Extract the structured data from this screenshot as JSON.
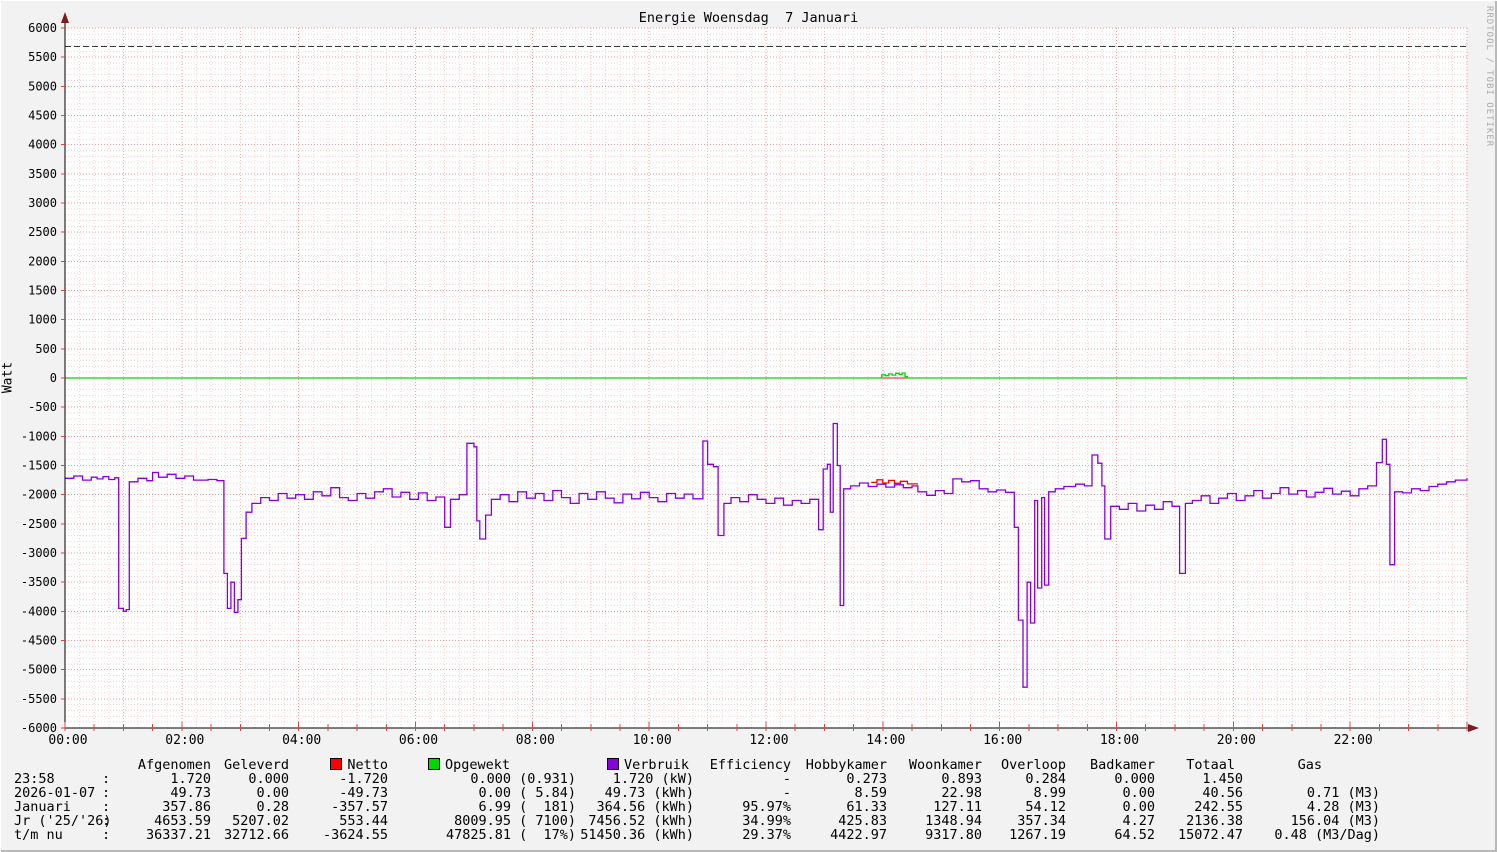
{
  "watermark": "RRDTOOL / TOBI OETIKER",
  "chart_data": {
    "type": "line",
    "title": "Energie Woensdag  7 Januari",
    "ylabel": "Watt",
    "ylim": [
      -6000,
      6000
    ],
    "xlim_hours": [
      0,
      24
    ],
    "hrule_dashed": 5680,
    "grid": {
      "y_major": 500,
      "y_minor": 100,
      "x_major_hours": 2,
      "x_minor_hours": 0.25,
      "grid_on": true
    },
    "legend_position": "bottom",
    "colors": {
      "background": "#f2f2f2",
      "canvas": "#ffffff",
      "grid_minor": "#f7d6d6",
      "grid_hour": "#f3bcbc",
      "grid_major": "#ee9f9f",
      "hrule": "#3a3a3a",
      "zero_rule": "#ff0000",
      "axis": "#000000",
      "arrow": "#7c1c1c",
      "tick": "#dd4444",
      "opgewekt": "#00d800",
      "netto": "#ff0000",
      "verbruik": "#8800dd"
    },
    "y_ticks": [
      {
        "v": 6000,
        "label": "6000"
      },
      {
        "v": 5500,
        "label": "5500"
      },
      {
        "v": 5000,
        "label": "5000"
      },
      {
        "v": 4500,
        "label": "4500"
      },
      {
        "v": 4000,
        "label": "4000"
      },
      {
        "v": 3500,
        "label": "3500"
      },
      {
        "v": 3000,
        "label": "3000"
      },
      {
        "v": 2500,
        "label": "2500"
      },
      {
        "v": 2000,
        "label": "2000"
      },
      {
        "v": 1500,
        "label": "1500"
      },
      {
        "v": 1000,
        "label": "1000"
      },
      {
        "v": 500,
        "label": "500"
      },
      {
        "v": 0,
        "label": "0"
      },
      {
        "v": -500,
        "label": "-500"
      },
      {
        "v": -1000,
        "label": "-1000"
      },
      {
        "v": -1500,
        "label": "-1500"
      },
      {
        "v": -2000,
        "label": "-2000"
      },
      {
        "v": -2500,
        "label": "-2500"
      },
      {
        "v": -3000,
        "label": "-3000"
      },
      {
        "v": -3500,
        "label": "-3500"
      },
      {
        "v": -4000,
        "label": "-4000"
      },
      {
        "v": -4500,
        "label": "-4500"
      },
      {
        "v": -5000,
        "label": "-5000"
      },
      {
        "v": -5500,
        "label": "-5500"
      },
      {
        "v": -6000,
        "label": "-6000"
      }
    ],
    "x_ticks": [
      {
        "v": 0,
        "label": "00:00"
      },
      {
        "v": 2,
        "label": "02:00"
      },
      {
        "v": 4,
        "label": "04:00"
      },
      {
        "v": 6,
        "label": "06:00"
      },
      {
        "v": 8,
        "label": "08:00"
      },
      {
        "v": 10,
        "label": "10:00"
      },
      {
        "v": 12,
        "label": "12:00"
      },
      {
        "v": 14,
        "label": "14:00"
      },
      {
        "v": 16,
        "label": "16:00"
      },
      {
        "v": 18,
        "label": "18:00"
      },
      {
        "v": 20,
        "label": "20:00"
      },
      {
        "v": 22,
        "label": "22:00"
      }
    ],
    "series": [
      {
        "name": "Opgewekt",
        "color": "#00d800",
        "points": [
          [
            0,
            0
          ],
          [
            13.93,
            0
          ],
          [
            13.98,
            55
          ],
          [
            14.04,
            40
          ],
          [
            14.1,
            70
          ],
          [
            14.16,
            50
          ],
          [
            14.22,
            80
          ],
          [
            14.28,
            60
          ],
          [
            14.33,
            85
          ],
          [
            14.38,
            25
          ],
          [
            14.42,
            0
          ],
          [
            24,
            0
          ]
        ]
      },
      {
        "name": "Verbruik",
        "color": "#8800dd",
        "points": [
          [
            0.0,
            -1720
          ],
          [
            0.15,
            -1680
          ],
          [
            0.3,
            -1750
          ],
          [
            0.45,
            -1700
          ],
          [
            0.55,
            -1730
          ],
          [
            0.65,
            -1690
          ],
          [
            0.75,
            -1740
          ],
          [
            0.85,
            -1710
          ],
          [
            0.92,
            -3950
          ],
          [
            1.0,
            -4000
          ],
          [
            1.05,
            -3970
          ],
          [
            1.1,
            -1780
          ],
          [
            1.25,
            -1720
          ],
          [
            1.4,
            -1760
          ],
          [
            1.5,
            -1620
          ],
          [
            1.6,
            -1700
          ],
          [
            1.75,
            -1650
          ],
          [
            1.9,
            -1720
          ],
          [
            2.05,
            -1680
          ],
          [
            2.2,
            -1750
          ],
          [
            2.45,
            -1740
          ],
          [
            2.6,
            -1760
          ],
          [
            2.72,
            -3350
          ],
          [
            2.78,
            -3950
          ],
          [
            2.84,
            -3500
          ],
          [
            2.9,
            -4020
          ],
          [
            2.96,
            -3800
          ],
          [
            3.02,
            -2750
          ],
          [
            3.1,
            -2300
          ],
          [
            3.2,
            -2150
          ],
          [
            3.35,
            -2050
          ],
          [
            3.5,
            -2100
          ],
          [
            3.65,
            -1980
          ],
          [
            3.8,
            -2060
          ],
          [
            3.95,
            -2000
          ],
          [
            4.1,
            -2080
          ],
          [
            4.25,
            -1950
          ],
          [
            4.4,
            -2020
          ],
          [
            4.55,
            -1880
          ],
          [
            4.7,
            -2050
          ],
          [
            4.85,
            -2100
          ],
          [
            5.0,
            -1980
          ],
          [
            5.15,
            -2060
          ],
          [
            5.3,
            -1950
          ],
          [
            5.45,
            -1900
          ],
          [
            5.6,
            -2040
          ],
          [
            5.75,
            -1960
          ],
          [
            5.9,
            -2080
          ],
          [
            6.05,
            -1970
          ],
          [
            6.2,
            -2100
          ],
          [
            6.35,
            -2040
          ],
          [
            6.5,
            -2560
          ],
          [
            6.6,
            -2080
          ],
          [
            6.75,
            -2000
          ],
          [
            6.88,
            -1120
          ],
          [
            7.0,
            -1180
          ],
          [
            7.05,
            -2450
          ],
          [
            7.1,
            -2760
          ],
          [
            7.2,
            -2350
          ],
          [
            7.3,
            -2080
          ],
          [
            7.45,
            -2000
          ],
          [
            7.6,
            -2120
          ],
          [
            7.75,
            -1950
          ],
          [
            7.9,
            -2060
          ],
          [
            8.05,
            -1980
          ],
          [
            8.2,
            -2100
          ],
          [
            8.35,
            -1930
          ],
          [
            8.5,
            -2050
          ],
          [
            8.65,
            -2150
          ],
          [
            8.8,
            -1980
          ],
          [
            8.95,
            -2080
          ],
          [
            9.1,
            -1950
          ],
          [
            9.25,
            -2060
          ],
          [
            9.4,
            -2140
          ],
          [
            9.55,
            -1990
          ],
          [
            9.7,
            -2070
          ],
          [
            9.85,
            -1960
          ],
          [
            10.0,
            -2050
          ],
          [
            10.15,
            -2120
          ],
          [
            10.3,
            -1980
          ],
          [
            10.45,
            -2060
          ],
          [
            10.6,
            -1990
          ],
          [
            10.75,
            -2070
          ],
          [
            10.92,
            -1080
          ],
          [
            11.0,
            -1480
          ],
          [
            11.1,
            -1520
          ],
          [
            11.18,
            -2700
          ],
          [
            11.28,
            -2150
          ],
          [
            11.4,
            -2050
          ],
          [
            11.55,
            -2120
          ],
          [
            11.7,
            -2000
          ],
          [
            11.85,
            -2080
          ],
          [
            12.0,
            -2150
          ],
          [
            12.15,
            -2060
          ],
          [
            12.3,
            -2180
          ],
          [
            12.45,
            -2100
          ],
          [
            12.6,
            -2150
          ],
          [
            12.75,
            -2080
          ],
          [
            12.9,
            -2600
          ],
          [
            12.98,
            -1560
          ],
          [
            13.05,
            -1480
          ],
          [
            13.1,
            -2300
          ],
          [
            13.15,
            -780
          ],
          [
            13.22,
            -1500
          ],
          [
            13.27,
            -3900
          ],
          [
            13.33,
            -1900
          ],
          [
            13.45,
            -1850
          ],
          [
            13.6,
            -1800
          ],
          [
            13.75,
            -1860
          ],
          [
            13.9,
            -1820
          ],
          [
            14.05,
            -1870
          ],
          [
            14.2,
            -1830
          ],
          [
            14.35,
            -1880
          ],
          [
            14.5,
            -1850
          ],
          [
            14.6,
            -1950
          ],
          [
            14.75,
            -2010
          ],
          [
            14.9,
            -1930
          ],
          [
            15.05,
            -1980
          ],
          [
            15.2,
            -1730
          ],
          [
            15.35,
            -1780
          ],
          [
            15.5,
            -1760
          ],
          [
            15.65,
            -1900
          ],
          [
            15.8,
            -1950
          ],
          [
            15.95,
            -1920
          ],
          [
            16.1,
            -1960
          ],
          [
            16.25,
            -2560
          ],
          [
            16.32,
            -4150
          ],
          [
            16.4,
            -5300
          ],
          [
            16.47,
            -3500
          ],
          [
            16.53,
            -4200
          ],
          [
            16.6,
            -2100
          ],
          [
            16.65,
            -3600
          ],
          [
            16.72,
            -2050
          ],
          [
            16.77,
            -3550
          ],
          [
            16.84,
            -1950
          ],
          [
            16.95,
            -1900
          ],
          [
            17.1,
            -1860
          ],
          [
            17.3,
            -1820
          ],
          [
            17.45,
            -1850
          ],
          [
            17.58,
            -1320
          ],
          [
            17.68,
            -1460
          ],
          [
            17.75,
            -1850
          ],
          [
            17.8,
            -2760
          ],
          [
            17.9,
            -2200
          ],
          [
            18.05,
            -2250
          ],
          [
            18.2,
            -2150
          ],
          [
            18.35,
            -2280
          ],
          [
            18.5,
            -2180
          ],
          [
            18.65,
            -2250
          ],
          [
            18.8,
            -2120
          ],
          [
            18.95,
            -2200
          ],
          [
            19.08,
            -3350
          ],
          [
            19.18,
            -2150
          ],
          [
            19.3,
            -2100
          ],
          [
            19.45,
            -2020
          ],
          [
            19.6,
            -2150
          ],
          [
            19.75,
            -2060
          ],
          [
            19.9,
            -1980
          ],
          [
            20.05,
            -2100
          ],
          [
            20.2,
            -2020
          ],
          [
            20.35,
            -1930
          ],
          [
            20.5,
            -2060
          ],
          [
            20.65,
            -1980
          ],
          [
            20.8,
            -1880
          ],
          [
            20.95,
            -1990
          ],
          [
            21.1,
            -1930
          ],
          [
            21.25,
            -2040
          ],
          [
            21.4,
            -1960
          ],
          [
            21.55,
            -1890
          ],
          [
            21.7,
            -1990
          ],
          [
            21.85,
            -1940
          ],
          [
            22.0,
            -2020
          ],
          [
            22.15,
            -1900
          ],
          [
            22.3,
            -1850
          ],
          [
            22.45,
            -1450
          ],
          [
            22.55,
            -1050
          ],
          [
            22.62,
            -1480
          ],
          [
            22.68,
            -3200
          ],
          [
            22.76,
            -1950
          ],
          [
            22.9,
            -1970
          ],
          [
            23.05,
            -1900
          ],
          [
            23.2,
            -1930
          ],
          [
            23.35,
            -1860
          ],
          [
            23.5,
            -1820
          ],
          [
            23.65,
            -1780
          ],
          [
            23.8,
            -1750
          ],
          [
            24.0,
            -1720
          ]
        ]
      },
      {
        "name": "Netto",
        "color": "#ff0000",
        "points": [
          [
            13.8,
            -1790
          ],
          [
            13.9,
            -1745
          ],
          [
            14.0,
            -1800
          ],
          [
            14.1,
            -1755
          ],
          [
            14.2,
            -1805
          ],
          [
            14.3,
            -1770
          ],
          [
            14.42,
            -1815
          ],
          [
            14.6,
            -1815
          ]
        ]
      }
    ]
  },
  "legend": {
    "headers": [
      {
        "label": "Afgenomen"
      },
      {
        "label": "Geleverd"
      },
      {
        "label": "Netto",
        "swatch": "#ff0000"
      },
      {
        "label": "Opgewekt",
        "swatch": "#00d800"
      },
      {
        "label": "Verbruik",
        "swatch": "#8800dd"
      },
      {
        "label": "Efficiency"
      },
      {
        "label": "Hobbykamer"
      },
      {
        "label": "Woonkamer"
      },
      {
        "label": "Overloop"
      },
      {
        "label": "Badkamer"
      },
      {
        "label": "Totaal"
      },
      {
        "label": "Gas"
      }
    ],
    "rows": [
      {
        "label": "23:58",
        "sep": ":",
        "values": [
          "1.720",
          "0.000",
          "-1.720",
          "0.000 (0.931)",
          "1.720 (kW)",
          "-",
          "0.273",
          "0.893",
          "0.284",
          "0.000",
          "1.450",
          ""
        ]
      },
      {
        "label": "2026-01-07",
        "sep": ":",
        "values": [
          "49.73",
          "0.00",
          "-49.73",
          "0.00 ( 5.84)",
          "49.73 (kWh)",
          "-",
          "8.59",
          "22.98",
          "8.99",
          "0.00",
          "40.56",
          "0.71 (M3)"
        ]
      },
      {
        "label": "Januari",
        "sep": ":",
        "values": [
          "357.86",
          "0.28",
          "-357.57",
          "6.99 (  181)",
          "364.56 (kWh)",
          "95.97%",
          "61.33",
          "127.11",
          "54.12",
          "0.00",
          "242.55",
          "4.28 (M3)"
        ]
      },
      {
        "label": "Jr ('25/'26)",
        "sep": ":",
        "values": [
          "4653.59",
          "5207.02",
          "553.44",
          "8009.95 ( 7100)",
          "7456.52 (kWh)",
          "34.99%",
          "425.83",
          "1348.94",
          "357.34",
          "4.27",
          "2136.38",
          "156.04 (M3)"
        ]
      },
      {
        "label": "t/m nu",
        "sep": ":",
        "values": [
          "36337.21",
          "32712.66",
          "-3624.55",
          "47825.81 (  17%)",
          "51450.36 (kWh)",
          "29.37%",
          "4422.97",
          "9317.80",
          "1267.19",
          "64.52",
          "15072.47",
          "0.48 (M3/Dag)"
        ]
      }
    ]
  }
}
